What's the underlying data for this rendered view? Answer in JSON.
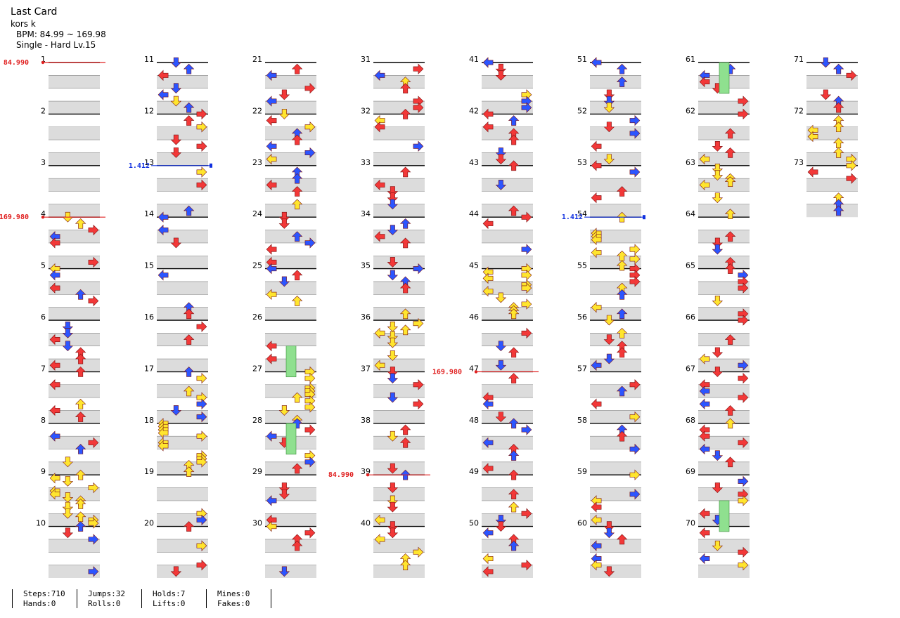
{
  "song": {
    "title": "Last Card",
    "artist": "kors k",
    "bpm_line": "BPM: 84.99 ~ 169.98",
    "difficulty_line": "Single - Hard  Lv.15"
  },
  "chart_layout": {
    "columns": 8,
    "measures_per_column": 10,
    "total_measures": 73,
    "rows_per_measure": 4
  },
  "bpm_changes": [
    {
      "measure": 1,
      "label": "84.990",
      "color": "#e02020"
    },
    {
      "measure": 4,
      "label": "169.980",
      "color": "#e02020"
    },
    {
      "measure": 39,
      "label": "84.990",
      "color": "#e02020"
    },
    {
      "measure": 47,
      "label": "169.980",
      "color": "#e02020"
    }
  ],
  "stops": [
    {
      "measure": 13,
      "label": "1.412",
      "color": "#1030e0"
    },
    {
      "measure": 54,
      "label": "1.412",
      "color": "#1030e0"
    }
  ],
  "colors": {
    "red": "#f23838",
    "blue": "#2c55ff",
    "yellow": "#ffe52e",
    "orange": "#ff8a2e",
    "green": "#8fe08f",
    "stripe": "#dcdcdc",
    "measure_line": "#000000",
    "beat_line": "#888888",
    "bpm_marker": "#e02020",
    "stop_marker": "#1030e0"
  },
  "stats": {
    "steps": "Steps:710",
    "hands": "Hands:0",
    "jumps": "Jumps:32",
    "rolls": "Rolls:0",
    "holds": "Holds:7",
    "lifts": "Lifts:0",
    "mines": "Mines:0",
    "fakes": "Fakes:0"
  }
}
